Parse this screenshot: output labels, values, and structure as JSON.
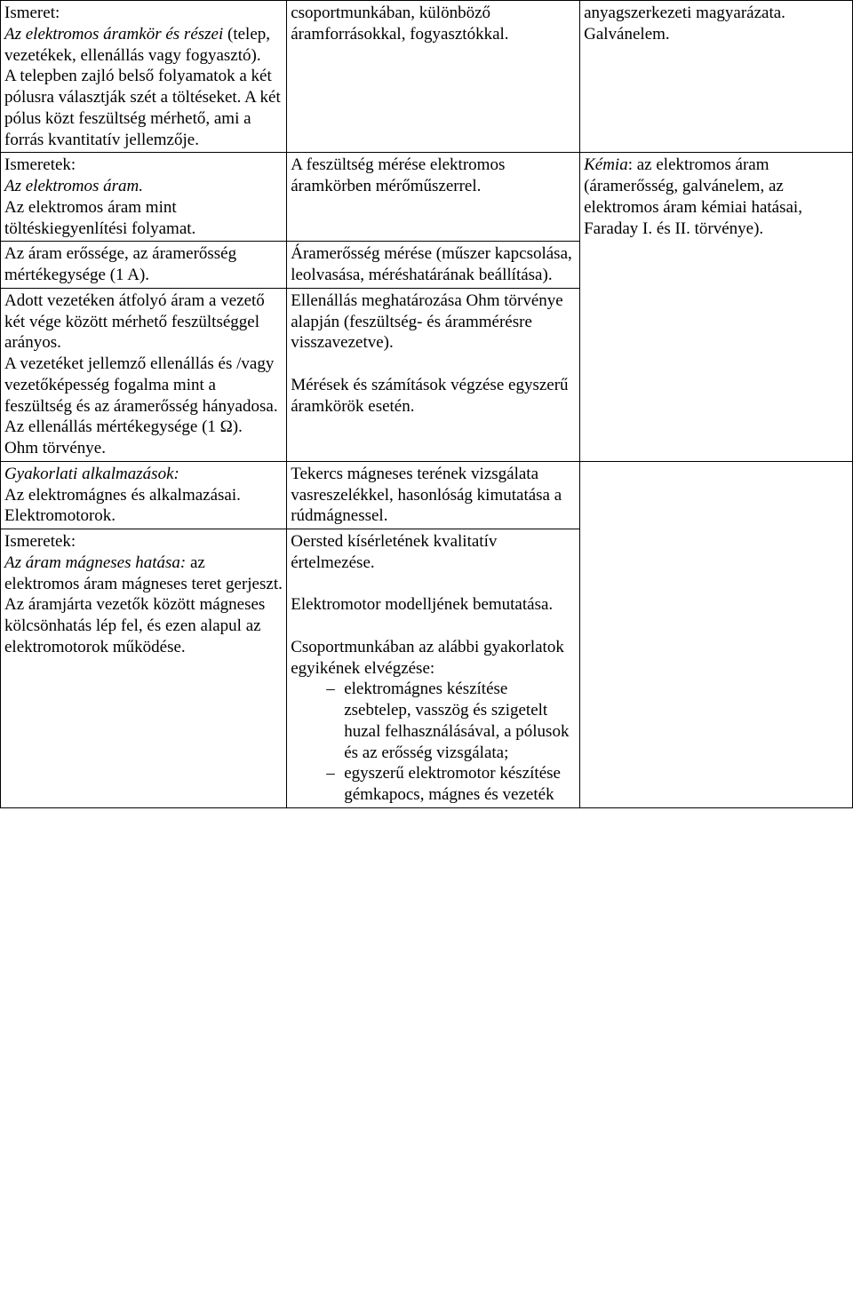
{
  "r0": {
    "c1_label": "Ismeret:",
    "c1_it": "Az elektromos áramkör és részei",
    "c1_rest1": "(telep, vezetékek, ellenállás vagy fogyasztó).",
    "c1_rest2": "A telepben zajló belső folyamatok a két pólusra választják szét a töltéseket. A két pólus közt feszültség mérhető, ami a forrás kvantitatív jellemzője.",
    "c2": "csoportmunkában, különböző áramforrásokkal, fogyasztókkal.",
    "c3a": "anyagszerkezeti magyarázata.",
    "c3b": "Galvánelem."
  },
  "r1": {
    "c1_label": "Ismeretek:",
    "c1_it": "Az elektromos áram.",
    "c1_rest": "Az elektromos áram mint töltéskiegyenlítési folyamat.",
    "c2": "A feszültség mérése elektromos áramkörben mérőműszerrel.",
    "c3_it": "Kémia",
    "c3_rest": ": az elektromos áram (áramerősség, galvánelem, az elektromos áram kémiai hatásai, Faraday I. és II. törvénye)."
  },
  "r2": {
    "c1": "Az áram erőssége, az áramerősség mértékegysége (1 A).",
    "c2": "Áramerősség mérése (műszer kapcsolása, leolvasása, méréshatárának beállítása)."
  },
  "r3": {
    "c1a": "Adott vezetéken átfolyó áram a vezető két vége között mérhető feszültséggel arányos.",
    "c1b": "A vezetéket jellemző ellenállás és /vagy vezetőképesség fogalma mint a feszültség és az áramerősség hányadosa.",
    "c1c": "Az ellenállás mértékegysége (1 Ω).",
    "c1d": "Ohm törvénye.",
    "c2a": "Ellenállás meghatározása Ohm törvénye alapján (feszültség- és árammérésre visszavezetve).",
    "c2b": "Mérések és számítások végzése egyszerű áramkörök esetén."
  },
  "r4": {
    "c1_it": "Gyakorlati alkalmazások:",
    "c1a": "Az elektromágnes és alkalmazásai.",
    "c1b": "Elektromotorok.",
    "c2": "Tekercs mágneses terének vizsgálata vasreszelékkel, hasonlóság kimutatása a rúdmágnessel."
  },
  "r5": {
    "c1_label": "Ismeretek:",
    "c1_it": "Az áram mágneses hatása:",
    "c1_rest1": " az elektromos áram mágneses teret gerjeszt.",
    "c1_rest2": "Az áramjárta vezetők között mágneses kölcsönhatás lép fel, és ezen alapul az elektromotorok működése.",
    "c2a": "Oersted kísérletének kvalitatív értelmezése.",
    "c2b": "Elektromotor modelljének bemutatása.",
    "c2c": "Csoportmunkában az alábbi gyakorlatok egyikének elvégzése:",
    "c2_li1": "elektromágnes készítése zsebtelep, vasszög és szigetelt huzal felhasználásával, a pólusok és az erősség vizsgálata;",
    "c2_li2": "egyszerű elektromotor készítése gémkapocs, mágnes és vezeték"
  }
}
